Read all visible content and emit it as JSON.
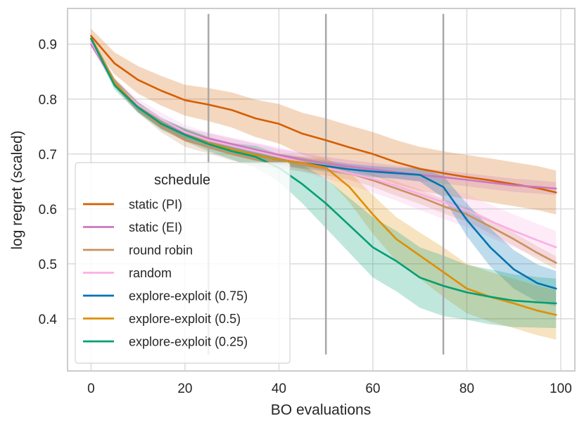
{
  "chart_data": {
    "type": "line",
    "title": "",
    "xlabel": "BO evaluations",
    "ylabel": "log regret (scaled)",
    "xlim": [
      -5,
      103
    ],
    "ylim": [
      0.305,
      0.965
    ],
    "xticks": [
      "0",
      "20",
      "40",
      "60",
      "80",
      "100"
    ],
    "yticks": [
      "0.4",
      "0.5",
      "0.6",
      "0.7",
      "0.8",
      "0.9"
    ],
    "xtick_values": [
      0,
      20,
      40,
      60,
      80,
      100
    ],
    "ytick_values": [
      0.4,
      0.5,
      0.6,
      0.7,
      0.8,
      0.9
    ],
    "grid": true,
    "vlines": {
      "x": [
        25,
        50,
        75
      ],
      "ymin": 0.335,
      "ymax": 0.955,
      "color": "#a8a8a8"
    },
    "legend": {
      "title": "schedule",
      "placement": "lower-left"
    },
    "series": [
      {
        "name": "static (PI)",
        "color": "#d55e00",
        "x": [
          0,
          5,
          10,
          15,
          20,
          25,
          30,
          35,
          40,
          45,
          50,
          55,
          60,
          65,
          70,
          75,
          80,
          85,
          90,
          95,
          99
        ],
        "y": [
          0.915,
          0.865,
          0.835,
          0.815,
          0.798,
          0.79,
          0.78,
          0.765,
          0.755,
          0.737,
          0.725,
          0.712,
          0.7,
          0.685,
          0.673,
          0.665,
          0.658,
          0.652,
          0.645,
          0.638,
          0.63
        ],
        "band": [
          0.013,
          0.02,
          0.025,
          0.027,
          0.028,
          0.03,
          0.032,
          0.034,
          0.036,
          0.038,
          0.04,
          0.04,
          0.04,
          0.04,
          0.04,
          0.04,
          0.04,
          0.04,
          0.04,
          0.04,
          0.04
        ]
      },
      {
        "name": "static (EI)",
        "color": "#cc78bc",
        "x": [
          0,
          5,
          10,
          15,
          20,
          25,
          30,
          35,
          40,
          45,
          50,
          55,
          60,
          65,
          70,
          75,
          80,
          85,
          90,
          95,
          99
        ],
        "y": [
          0.9,
          0.83,
          0.785,
          0.755,
          0.738,
          0.728,
          0.718,
          0.708,
          0.698,
          0.69,
          0.683,
          0.677,
          0.672,
          0.667,
          0.662,
          0.658,
          0.653,
          0.648,
          0.643,
          0.64,
          0.637
        ],
        "band": [
          0.005,
          0.007,
          0.008,
          0.009,
          0.009,
          0.01,
          0.01,
          0.011,
          0.011,
          0.012,
          0.012,
          0.012,
          0.012,
          0.012,
          0.012,
          0.012,
          0.012,
          0.012,
          0.012,
          0.012,
          0.012
        ]
      },
      {
        "name": "round robin",
        "color": "#ca9161",
        "x": [
          0,
          5,
          10,
          15,
          20,
          25,
          30,
          35,
          40,
          45,
          50,
          55,
          60,
          65,
          70,
          75,
          80,
          85,
          90,
          95,
          99
        ],
        "y": [
          0.91,
          0.83,
          0.785,
          0.75,
          0.725,
          0.713,
          0.7,
          0.69,
          0.685,
          0.68,
          0.673,
          0.665,
          0.652,
          0.637,
          0.622,
          0.605,
          0.59,
          0.568,
          0.545,
          0.52,
          0.502
        ],
        "band": [
          0.005,
          0.008,
          0.01,
          0.011,
          0.012,
          0.012,
          0.012,
          0.012,
          0.012,
          0.012,
          0.012,
          0.012,
          0.012,
          0.013,
          0.013,
          0.013,
          0.013,
          0.013,
          0.012,
          0.012,
          0.012
        ]
      },
      {
        "name": "random",
        "color": "#fbafe4",
        "x": [
          0,
          5,
          10,
          15,
          20,
          25,
          30,
          35,
          40,
          45,
          50,
          55,
          60,
          65,
          70,
          75,
          80,
          85,
          90,
          95,
          99
        ],
        "y": [
          0.905,
          0.83,
          0.79,
          0.763,
          0.74,
          0.725,
          0.715,
          0.705,
          0.695,
          0.685,
          0.675,
          0.665,
          0.655,
          0.642,
          0.627,
          0.612,
          0.597,
          0.578,
          0.56,
          0.543,
          0.53
        ],
        "band": [
          0.006,
          0.008,
          0.01,
          0.012,
          0.013,
          0.014,
          0.015,
          0.016,
          0.017,
          0.018,
          0.02,
          0.022,
          0.025,
          0.027,
          0.029,
          0.03,
          0.03,
          0.03,
          0.03,
          0.03,
          0.03
        ]
      },
      {
        "name": "explore-exploit (0.75)",
        "color": "#0173b2",
        "x": [
          0,
          5,
          10,
          15,
          20,
          25,
          30,
          35,
          40,
          45,
          50,
          55,
          60,
          65,
          70,
          75,
          80,
          85,
          90,
          95,
          99
        ],
        "y": [
          0.91,
          0.83,
          0.785,
          0.755,
          0.735,
          0.72,
          0.708,
          0.698,
          0.69,
          0.684,
          0.678,
          0.672,
          0.668,
          0.665,
          0.662,
          0.64,
          0.58,
          0.53,
          0.49,
          0.465,
          0.455
        ],
        "band": [
          0.005,
          0.007,
          0.008,
          0.009,
          0.01,
          0.01,
          0.01,
          0.01,
          0.01,
          0.01,
          0.01,
          0.01,
          0.01,
          0.01,
          0.012,
          0.02,
          0.03,
          0.035,
          0.035,
          0.034,
          0.032
        ]
      },
      {
        "name": "explore-exploit (0.5)",
        "color": "#de8f05",
        "x": [
          0,
          5,
          10,
          15,
          20,
          25,
          30,
          35,
          40,
          45,
          50,
          55,
          60,
          65,
          70,
          75,
          80,
          85,
          90,
          95,
          99
        ],
        "y": [
          0.91,
          0.83,
          0.785,
          0.755,
          0.735,
          0.72,
          0.708,
          0.698,
          0.69,
          0.684,
          0.675,
          0.64,
          0.59,
          0.545,
          0.515,
          0.485,
          0.455,
          0.44,
          0.428,
          0.415,
          0.407
        ],
        "band": [
          0.005,
          0.007,
          0.008,
          0.009,
          0.01,
          0.01,
          0.01,
          0.01,
          0.01,
          0.012,
          0.018,
          0.028,
          0.035,
          0.04,
          0.042,
          0.045,
          0.045,
          0.045,
          0.045,
          0.045,
          0.045
        ]
      },
      {
        "name": "explore-exploit (0.25)",
        "color": "#029e73",
        "x": [
          0,
          5,
          10,
          15,
          20,
          25,
          30,
          35,
          40,
          45,
          50,
          55,
          60,
          65,
          70,
          75,
          80,
          85,
          90,
          95,
          99
        ],
        "y": [
          0.91,
          0.825,
          0.785,
          0.755,
          0.735,
          0.718,
          0.705,
          0.695,
          0.675,
          0.645,
          0.61,
          0.57,
          0.53,
          0.505,
          0.475,
          0.46,
          0.448,
          0.44,
          0.433,
          0.43,
          0.428
        ],
        "band": [
          0.005,
          0.008,
          0.01,
          0.011,
          0.012,
          0.013,
          0.015,
          0.02,
          0.025,
          0.035,
          0.045,
          0.05,
          0.055,
          0.055,
          0.055,
          0.055,
          0.05,
          0.05,
          0.048,
          0.046,
          0.045
        ]
      }
    ]
  }
}
